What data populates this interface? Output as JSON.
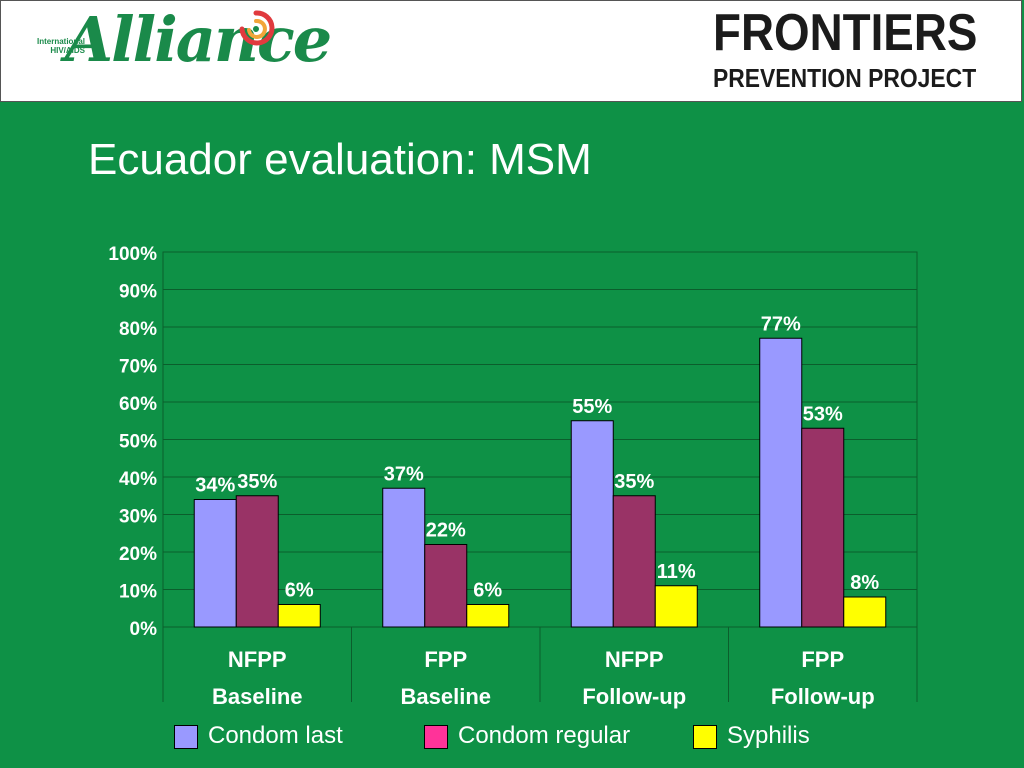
{
  "header": {
    "alliance_small_1": "International",
    "alliance_small_2": "HIV/AIDS",
    "alliance_word": "Alliance",
    "frontiers_word": "FRONTIERS",
    "frontiers_sub": "PREVENTION PROJECT"
  },
  "slide": {
    "title": "Ecuador evaluation: MSM"
  },
  "colors": {
    "background": "#0e9146",
    "condom_last": "#9999ff",
    "condom_regular": "#993366",
    "syphilis": "#ffff00",
    "legend_condom_regular": "#ff3399"
  },
  "chart_data": {
    "type": "bar",
    "categories": [
      "NFPP Baseline",
      "FPP Baseline",
      "NFPP Follow-up",
      "FPP Follow-up"
    ],
    "category_lines": [
      [
        "NFPP",
        "Baseline"
      ],
      [
        "FPP",
        "Baseline"
      ],
      [
        "NFPP",
        "Follow-up"
      ],
      [
        "FPP",
        "Follow-up"
      ]
    ],
    "series": [
      {
        "name": "Condom last",
        "values": [
          34,
          37,
          55,
          77
        ],
        "labels": [
          "34%",
          "37%",
          "55%",
          "77%"
        ]
      },
      {
        "name": "Condom regular",
        "values": [
          35,
          22,
          35,
          53
        ],
        "labels": [
          "35%",
          "22%",
          "35%",
          "53%"
        ]
      },
      {
        "name": "Syphilis",
        "values": [
          6,
          6,
          11,
          8
        ],
        "labels": [
          "6%",
          "6%",
          "11%",
          "8%"
        ]
      }
    ],
    "ylim": [
      0,
      100
    ],
    "yticks": [
      "0%",
      "10%",
      "20%",
      "30%",
      "40%",
      "50%",
      "60%",
      "70%",
      "80%",
      "90%",
      "100%"
    ],
    "grid": true,
    "legend_position": "bottom"
  }
}
